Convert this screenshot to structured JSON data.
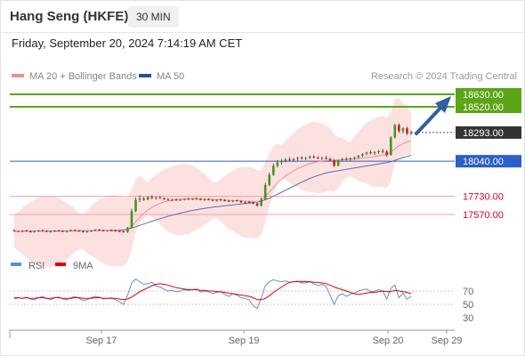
{
  "header": {
    "title": "Hang Seng (HKFE)",
    "timeframe": "30 MIN",
    "datetime": "Friday, September 20, 2024 7:14:19 AM CET"
  },
  "legend": {
    "ma20": "MA 20 + Bollinger Bands",
    "ma50": "MA 50",
    "credit": "Research © 2024 Trading Central"
  },
  "rsi_legend": {
    "rsi": "RSI",
    "ma9": "9MA"
  },
  "colors": {
    "resistance": "#5aa614",
    "pivot": "#2a5fce",
    "support": "#e8001c",
    "support_line": "#f0a0a6",
    "bollinger": "#fcdcdc",
    "ma20": "#f08d8d",
    "ma50": "#5a6fb0",
    "arrow": "#2e5fa8",
    "last_price": "#333333",
    "candle_up": "#3f9a10",
    "candle_down": "#d11a1a",
    "rsi": "#5b8ee0",
    "rsi_ma": "#e60000"
  },
  "chart_data": {
    "type": "candlestick",
    "title": "Hang Seng (HKFE)",
    "timeframe": "30 MIN",
    "x_tick_labels": [
      "Sep 17",
      "Sep 19",
      "Sep 20",
      "Sep 29"
    ],
    "y_range": [
      17430,
      18650
    ],
    "levels": [
      {
        "value": 18630.0,
        "label": "18630.00",
        "type": "resistance"
      },
      {
        "value": 18520.0,
        "label": "18520.00",
        "type": "resistance"
      },
      {
        "value": 18293.0,
        "label": "18293.00",
        "type": "last"
      },
      {
        "value": 18040.0,
        "label": "18040.00",
        "type": "pivot"
      },
      {
        "value": 17730.0,
        "label": "17730.00",
        "type": "support"
      },
      {
        "value": 17570.0,
        "label": "17570.00",
        "type": "support"
      }
    ],
    "candles": [
      [
        17430,
        17440,
        17420,
        17425
      ],
      [
        17425,
        17430,
        17415,
        17420
      ],
      [
        17420,
        17432,
        17412,
        17428
      ],
      [
        17428,
        17436,
        17418,
        17422
      ],
      [
        17422,
        17430,
        17410,
        17415
      ],
      [
        17415,
        17428,
        17410,
        17424
      ],
      [
        17424,
        17434,
        17416,
        17430
      ],
      [
        17430,
        17440,
        17420,
        17426
      ],
      [
        17426,
        17432,
        17414,
        17418
      ],
      [
        17418,
        17428,
        17410,
        17422
      ],
      [
        17422,
        17432,
        17414,
        17428
      ],
      [
        17428,
        17436,
        17420,
        17424
      ],
      [
        17424,
        17432,
        17416,
        17420
      ],
      [
        17420,
        17430,
        17412,
        17426
      ],
      [
        17426,
        17438,
        17420,
        17432
      ],
      [
        17432,
        17440,
        17424,
        17428
      ],
      [
        17428,
        17434,
        17418,
        17422
      ],
      [
        17422,
        17428,
        17410,
        17416
      ],
      [
        17416,
        17426,
        17410,
        17420
      ],
      [
        17420,
        17432,
        17414,
        17430
      ],
      [
        17430,
        17440,
        17424,
        17436
      ],
      [
        17436,
        17442,
        17426,
        17430
      ],
      [
        17430,
        17436,
        17420,
        17426
      ],
      [
        17426,
        17434,
        17418,
        17432
      ],
      [
        17432,
        17440,
        17422,
        17428
      ],
      [
        17428,
        17436,
        17420,
        17424
      ],
      [
        17424,
        17430,
        17414,
        17420
      ],
      [
        17420,
        17428,
        17410,
        17416
      ],
      [
        17416,
        17460,
        17408,
        17455
      ],
      [
        17455,
        17620,
        17450,
        17600
      ],
      [
        17600,
        17720,
        17590,
        17700
      ],
      [
        17700,
        17740,
        17680,
        17710
      ],
      [
        17710,
        17725,
        17690,
        17700
      ],
      [
        17700,
        17730,
        17695,
        17725
      ],
      [
        17725,
        17740,
        17705,
        17715
      ],
      [
        17715,
        17728,
        17700,
        17720
      ],
      [
        17720,
        17735,
        17710,
        17712
      ],
      [
        17712,
        17722,
        17698,
        17705
      ],
      [
        17705,
        17715,
        17692,
        17698
      ],
      [
        17698,
        17710,
        17688,
        17700
      ],
      [
        17700,
        17712,
        17692,
        17696
      ],
      [
        17696,
        17708,
        17688,
        17702
      ],
      [
        17702,
        17714,
        17694,
        17708
      ],
      [
        17708,
        17720,
        17700,
        17704
      ],
      [
        17704,
        17716,
        17696,
        17710
      ],
      [
        17710,
        17722,
        17702,
        17706
      ],
      [
        17706,
        17716,
        17696,
        17700
      ],
      [
        17700,
        17712,
        17690,
        17704
      ],
      [
        17704,
        17714,
        17694,
        17698
      ],
      [
        17698,
        17708,
        17688,
        17692
      ],
      [
        17692,
        17704,
        17684,
        17700
      ],
      [
        17700,
        17712,
        17692,
        17696
      ],
      [
        17696,
        17706,
        17686,
        17690
      ],
      [
        17690,
        17700,
        17680,
        17686
      ],
      [
        17686,
        17698,
        17676,
        17694
      ],
      [
        17694,
        17704,
        17684,
        17688
      ],
      [
        17688,
        17698,
        17672,
        17676
      ],
      [
        17676,
        17688,
        17664,
        17680
      ],
      [
        17680,
        17692,
        17668,
        17672
      ],
      [
        17672,
        17684,
        17660,
        17668
      ],
      [
        17668,
        17680,
        17640,
        17648
      ],
      [
        17648,
        17720,
        17640,
        17705
      ],
      [
        17705,
        17850,
        17700,
        17830
      ],
      [
        17830,
        17940,
        17820,
        17920
      ],
      [
        17920,
        18020,
        17910,
        18000
      ],
      [
        18000,
        18050,
        17985,
        18030
      ],
      [
        18030,
        18060,
        18010,
        18045
      ],
      [
        18045,
        18070,
        18030,
        18055
      ],
      [
        18055,
        18075,
        18040,
        18050
      ],
      [
        18050,
        18068,
        18035,
        18060
      ],
      [
        18060,
        18080,
        18045,
        18070
      ],
      [
        18070,
        18085,
        18055,
        18062
      ],
      [
        18062,
        18078,
        18050,
        18070
      ],
      [
        18070,
        18090,
        18060,
        18080
      ],
      [
        18080,
        18095,
        18065,
        18072
      ],
      [
        18072,
        18085,
        18058,
        18065
      ],
      [
        18065,
        18080,
        18050,
        18070
      ],
      [
        18070,
        18085,
        18056,
        18060
      ],
      [
        18060,
        18072,
        18040,
        18048
      ],
      [
        18048,
        18060,
        17990,
        18000
      ],
      [
        18000,
        18055,
        17995,
        18050
      ],
      [
        18050,
        18070,
        18038,
        18060
      ],
      [
        18060,
        18075,
        18045,
        18055
      ],
      [
        18055,
        18072,
        18042,
        18066
      ],
      [
        18066,
        18082,
        18052,
        18075
      ],
      [
        18075,
        18095,
        18062,
        18090
      ],
      [
        18090,
        18110,
        18078,
        18105
      ],
      [
        18105,
        18125,
        18092,
        18118
      ],
      [
        18118,
        18135,
        18100,
        18110
      ],
      [
        18110,
        18128,
        18095,
        18120
      ],
      [
        18120,
        18140,
        18105,
        18130
      ],
      [
        18130,
        18150,
        18110,
        18125
      ],
      [
        18125,
        18140,
        18080,
        18095
      ],
      [
        18095,
        18260,
        18090,
        18250
      ],
      [
        18250,
        18370,
        18240,
        18360
      ],
      [
        18360,
        18375,
        18290,
        18305
      ],
      [
        18305,
        18340,
        18285,
        18330
      ],
      [
        18330,
        18345,
        18270,
        18285
      ],
      [
        18285,
        18310,
        18270,
        18293
      ]
    ],
    "bollinger_centers": [
      17425,
      17420,
      17424,
      17426,
      17420,
      17420,
      17426,
      17424,
      17421,
      17418,
      17424,
      17425,
      17422,
      17422,
      17428,
      17430,
      17425,
      17419,
      17418,
      17425,
      17433,
      17433,
      17428,
      17429,
      17430,
      17426,
      17422,
      17418,
      17436,
      17528,
      17650,
      17705,
      17705,
      17712,
      17720,
      17717,
      17716,
      17708,
      17701,
      17699,
      17698,
      17699,
      17705,
      17706,
      17707,
      17708,
      17703,
      17702,
      17701,
      17695,
      17696,
      17698,
      17693,
      17688,
      17690,
      17691,
      17682,
      17678,
      17676,
      17670,
      17658,
      17676,
      17767,
      17875,
      17960,
      18015,
      18037,
      18050,
      18052,
      18055,
      18065,
      18066,
      18066,
      18075,
      18076,
      18068,
      18067,
      18065,
      18054,
      18024,
      18025,
      18055,
      18057,
      18060,
      18070,
      18082,
      18097,
      18111,
      18114,
      18115,
      18125,
      18127,
      18110,
      18172,
      18305,
      18332,
      18317,
      18307,
      18289
    ],
    "ma20": [
      17420,
      17420,
      17421,
      17421,
      17421,
      17422,
      17422,
      17422,
      17422,
      17422,
      17423,
      17423,
      17423,
      17423,
      17424,
      17424,
      17424,
      17424,
      17424,
      17425,
      17425,
      17426,
      17426,
      17427,
      17427,
      17427,
      17427,
      17427,
      17439,
      17465,
      17505,
      17545,
      17580,
      17610,
      17632,
      17652,
      17668,
      17680,
      17690,
      17695,
      17700,
      17703,
      17705,
      17707,
      17708,
      17708,
      17707,
      17706,
      17705,
      17703,
      17702,
      17700,
      17698,
      17696,
      17694,
      17692,
      17690,
      17688,
      17685,
      17682,
      17680,
      17700,
      17730,
      17770,
      17810,
      17850,
      17880,
      17910,
      17935,
      17955,
      17975,
      17990,
      18005,
      18018,
      18028,
      18036,
      18042,
      18046,
      18048,
      18048,
      18050,
      18052,
      18055,
      18058,
      18061,
      18064,
      18068,
      18072,
      18077,
      18082,
      18088,
      18094,
      18100,
      18120,
      18150,
      18175,
      18195,
      18210,
      18220
    ],
    "ma50": [
      17420,
      17421,
      17421,
      17422,
      17422,
      17423,
      17423,
      17423,
      17424,
      17424,
      17424,
      17425,
      17425,
      17425,
      17426,
      17426,
      17426,
      17427,
      17427,
      17427,
      17428,
      17428,
      17429,
      17429,
      17430,
      17431,
      17432,
      17434,
      17440,
      17450,
      17462,
      17474,
      17486,
      17498,
      17510,
      17522,
      17533,
      17544,
      17554,
      17564,
      17573,
      17582,
      17590,
      17598,
      17605,
      17612,
      17618,
      17624,
      17629,
      17634,
      17638,
      17642,
      17646,
      17650,
      17654,
      17658,
      17662,
      17666,
      17670,
      17675,
      17680,
      17688,
      17700,
      17714,
      17730,
      17748,
      17766,
      17784,
      17802,
      17820,
      17838,
      17856,
      17872,
      17888,
      17902,
      17914,
      17926,
      17936,
      17944,
      17950,
      17956,
      17962,
      17968,
      17974,
      17980,
      17986,
      17992,
      17998,
      18004,
      18010,
      18016,
      18022,
      18028,
      18036,
      18048,
      18060,
      18072,
      18082,
      18092
    ],
    "rsi": [
      58,
      60,
      59,
      61,
      58,
      57,
      60,
      62,
      59,
      57,
      60,
      61,
      58,
      57,
      60,
      62,
      59,
      56,
      57,
      60,
      62,
      61,
      58,
      59,
      60,
      57,
      54,
      50,
      64,
      82,
      88,
      84,
      80,
      81,
      83,
      78,
      76,
      73,
      70,
      71,
      69,
      70,
      72,
      71,
      72,
      73,
      69,
      70,
      69,
      66,
      68,
      69,
      65,
      62,
      66,
      64,
      60,
      59,
      57,
      48,
      44,
      60,
      78,
      84,
      87,
      85,
      84,
      85,
      83,
      84,
      85,
      82,
      82,
      84,
      81,
      78,
      80,
      77,
      64,
      50,
      63,
      66,
      62,
      65,
      67,
      70,
      72,
      73,
      69,
      70,
      72,
      70,
      58,
      74,
      79,
      60,
      67,
      58,
      62
    ],
    "rsi_ma9": [
      60,
      60,
      59,
      60,
      59,
      59,
      60,
      60,
      59,
      59,
      60,
      60,
      59,
      59,
      59,
      60,
      60,
      59,
      59,
      59,
      60,
      60,
      59,
      59,
      59,
      59,
      58,
      57,
      58,
      61,
      65,
      69,
      72,
      75,
      78,
      80,
      81,
      80,
      79,
      77,
      75,
      74,
      73,
      72,
      72,
      72,
      71,
      71,
      70,
      70,
      69,
      69,
      68,
      67,
      66,
      65,
      64,
      63,
      62,
      60,
      57,
      57,
      59,
      63,
      68,
      72,
      76,
      80,
      83,
      84,
      84,
      84,
      84,
      84,
      83,
      83,
      82,
      81,
      79,
      76,
      74,
      72,
      70,
      68,
      66,
      65,
      66,
      67,
      68,
      68,
      69,
      70,
      69,
      69,
      71,
      70,
      69,
      68,
      66
    ],
    "rsi_ticks": [
      "70",
      "50",
      "30"
    ],
    "rsi_levels": [
      70,
      50,
      30
    ]
  }
}
